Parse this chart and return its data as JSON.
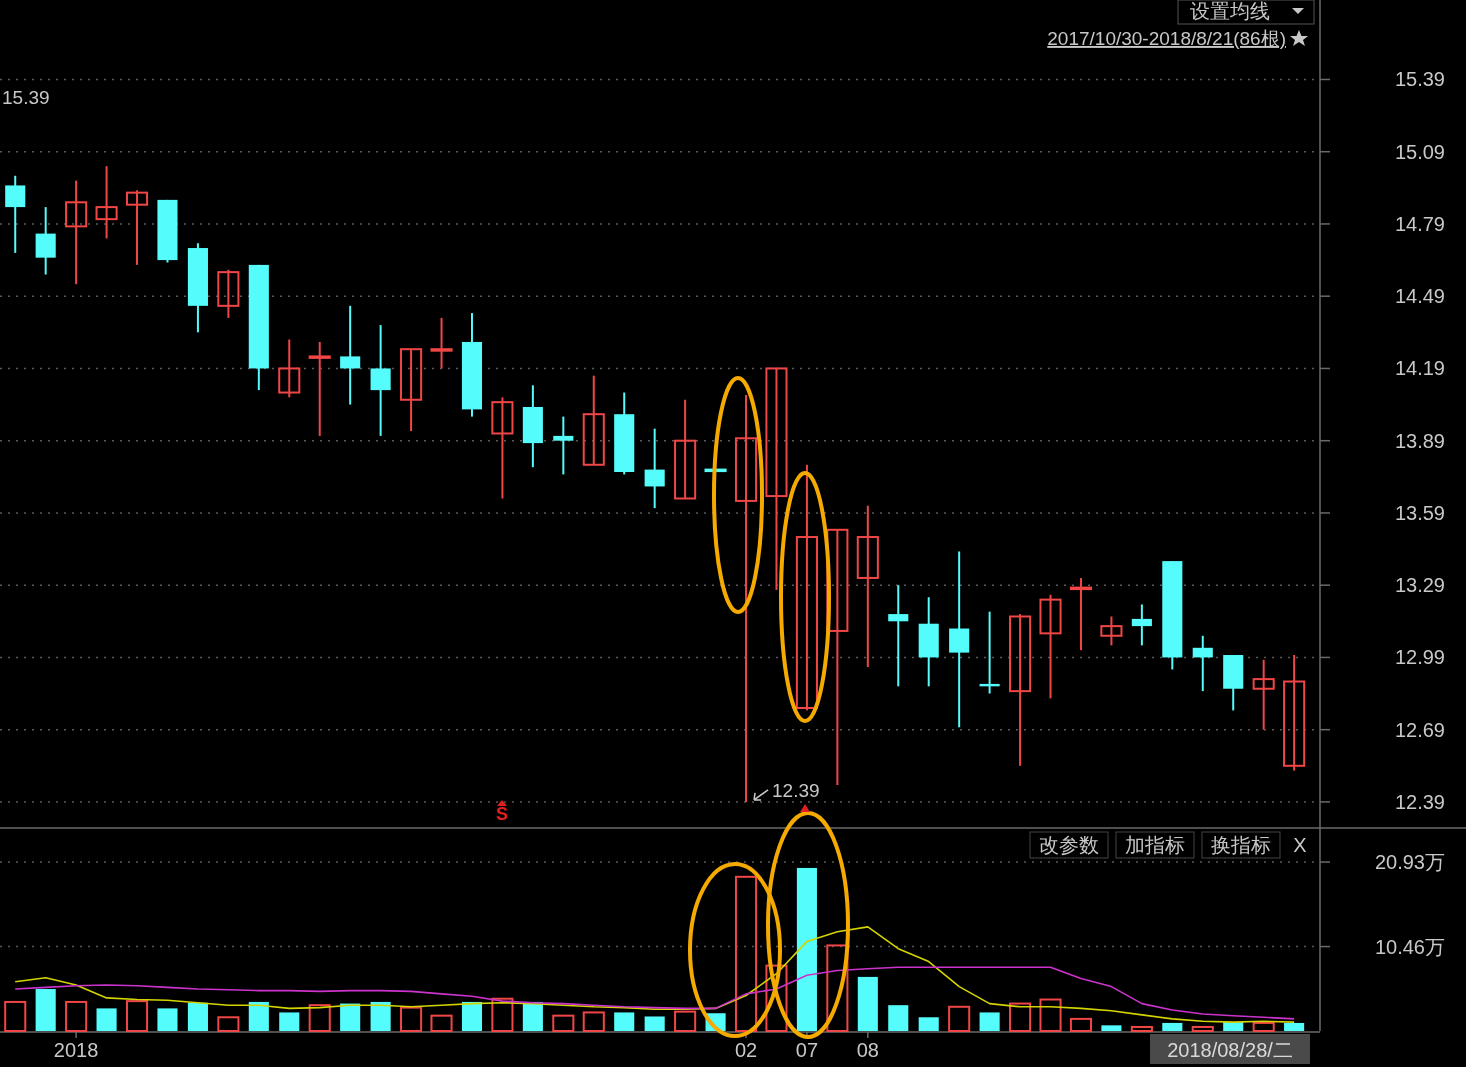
{
  "chart_data": [
    {
      "type": "candlestick",
      "categories": [
        null,
        null,
        "2018",
        null,
        null,
        null,
        null,
        null,
        null,
        null,
        null,
        null,
        null,
        null,
        null,
        null,
        null,
        null,
        null,
        null,
        null,
        null,
        null,
        null,
        "02",
        null,
        "07",
        null,
        "08",
        null,
        null,
        null,
        null,
        null,
        null,
        null,
        null,
        null,
        null,
        null,
        null,
        null,
        null
      ],
      "ohlc": [
        [
          14.95,
          14.99,
          14.67,
          14.86
        ],
        [
          14.75,
          14.86,
          14.58,
          14.65
        ],
        [
          14.78,
          14.97,
          14.54,
          14.88
        ],
        [
          14.81,
          15.03,
          14.73,
          14.86
        ],
        [
          14.87,
          14.93,
          14.62,
          14.92
        ],
        [
          14.89,
          14.89,
          14.63,
          14.64
        ],
        [
          14.69,
          14.71,
          14.34,
          14.45
        ],
        [
          14.45,
          14.6,
          14.4,
          14.59
        ],
        [
          14.62,
          14.62,
          14.1,
          14.19
        ],
        [
          14.09,
          14.31,
          14.07,
          14.19
        ],
        [
          14.24,
          14.3,
          13.91,
          14.24
        ],
        [
          14.24,
          14.45,
          14.04,
          14.19
        ],
        [
          14.19,
          14.37,
          13.91,
          14.1
        ],
        [
          14.06,
          14.27,
          13.93,
          14.27
        ],
        [
          14.27,
          14.4,
          14.19,
          14.27
        ],
        [
          14.3,
          14.42,
          13.99,
          14.02
        ],
        [
          13.92,
          14.07,
          13.65,
          14.05
        ],
        [
          14.03,
          14.12,
          13.78,
          13.88
        ],
        [
          13.91,
          13.99,
          13.75,
          13.89
        ],
        [
          13.79,
          14.16,
          13.79,
          14.0
        ],
        [
          14.0,
          14.09,
          13.75,
          13.76
        ],
        [
          13.77,
          13.94,
          13.61,
          13.7
        ],
        [
          13.65,
          14.06,
          13.65,
          13.89
        ],
        [
          13.77,
          13.77,
          13.77,
          13.77
        ],
        [
          13.64,
          14.08,
          12.39,
          13.9
        ],
        [
          13.66,
          14.19,
          13.27,
          14.19
        ],
        [
          12.78,
          13.79,
          12.77,
          13.49
        ],
        [
          13.1,
          13.52,
          12.46,
          13.52
        ],
        [
          13.32,
          13.62,
          12.95,
          13.49
        ],
        [
          13.17,
          13.29,
          12.87,
          13.14
        ],
        [
          13.13,
          13.24,
          12.87,
          12.99
        ],
        [
          13.11,
          13.43,
          12.7,
          13.01
        ],
        [
          12.88,
          13.18,
          12.84,
          12.87
        ],
        [
          12.85,
          13.17,
          12.54,
          13.16
        ],
        [
          13.09,
          13.25,
          12.82,
          13.23
        ],
        [
          13.28,
          13.32,
          13.02,
          13.28
        ],
        [
          13.08,
          13.16,
          13.04,
          13.12
        ],
        [
          13.15,
          13.21,
          13.04,
          13.12
        ],
        [
          13.39,
          13.39,
          12.94,
          12.99
        ],
        [
          13.03,
          13.08,
          12.85,
          12.99
        ],
        [
          13.0,
          13.0,
          12.77,
          12.86
        ],
        [
          12.86,
          12.98,
          12.69,
          12.9
        ],
        [
          12.54,
          13.0,
          12.52,
          12.89
        ]
      ],
      "colors": [
        "#54fcfc",
        "#54fcfc",
        "#f04646",
        "#f04646",
        "#f04646",
        "#54fcfc",
        "#54fcfc",
        "#f04646",
        "#54fcfc",
        "#f04646",
        "#f04646",
        "#54fcfc",
        "#54fcfc",
        "#f04646",
        "#f04646",
        "#54fcfc",
        "#f04646",
        "#54fcfc",
        "#54fcfc",
        "#f04646",
        "#54fcfc",
        "#54fcfc",
        "#f04646",
        "#54fcfc",
        "#f04646",
        "#f04646",
        "#f04646",
        "#f04646",
        "#f04646",
        "#54fcfc",
        "#54fcfc",
        "#54fcfc",
        "#54fcfc",
        "#f04646",
        "#f04646",
        "#f04646",
        "#f04646",
        "#54fcfc",
        "#54fcfc",
        "#54fcfc",
        "#54fcfc",
        "#f04646",
        "#f04646"
      ],
      "ylim": [
        12.29,
        15.72
      ],
      "yticks": [
        12.39,
        12.69,
        12.99,
        13.29,
        13.59,
        13.89,
        14.19,
        14.49,
        14.79,
        15.09,
        15.39
      ],
      "grid": "y",
      "tick_labels": "y",
      "annotations": [
        "设置均线",
        "2017/10/30-2018/8/21(86根)",
        "15.39",
        {
          "text": "12.39",
          "x": "02",
          "y": 12.39
        },
        "S"
      ]
    },
    {
      "type": "bar",
      "categories": [
        null,
        null,
        "2018",
        null,
        null,
        null,
        null,
        null,
        null,
        null,
        null,
        null,
        null,
        null,
        null,
        null,
        null,
        null,
        null,
        null,
        null,
        null,
        null,
        null,
        "02",
        null,
        "07",
        null,
        "08",
        null,
        null,
        null,
        null,
        null,
        null,
        null,
        null,
        null,
        null,
        null,
        null,
        null,
        null
      ],
      "series": [
        {
          "type": "bar",
          "values": [
            3.6,
            5.2,
            3.6,
            2.8,
            3.7,
            2.8,
            3.5,
            1.7,
            3.6,
            2.3,
            3.2,
            3.4,
            3.6,
            2.9,
            1.9,
            3.6,
            4.0,
            3.6,
            1.9,
            2.3,
            2.3,
            1.8,
            2.4,
            2.2,
            19.1,
            8.1,
            20.2,
            10.6,
            6.7,
            3.2,
            1.7,
            3.0,
            2.3,
            3.4,
            3.9,
            1.5,
            0.7,
            0.5,
            1.0,
            0.5,
            1.1,
            1.0,
            1.0
          ],
          "colors": [
            "#f04646",
            "#54fcfc",
            "#f04646",
            "#54fcfc",
            "#f04646",
            "#54fcfc",
            "#54fcfc",
            "#f04646",
            "#54fcfc",
            "#54fcfc",
            "#f04646",
            "#54fcfc",
            "#54fcfc",
            "#f04646",
            "#f04646",
            "#54fcfc",
            "#f04646",
            "#54fcfc",
            "#f04646",
            "#f04646",
            "#54fcfc",
            "#54fcfc",
            "#f04646",
            "#54fcfc",
            "#f04646",
            "#f04646",
            "#54fcfc",
            "#f04646",
            "#54fcfc",
            "#54fcfc",
            "#54fcfc",
            "#f04646",
            "#54fcfc",
            "#f04646",
            "#f04646",
            "#f04646",
            "#54fcfc",
            "#f04646",
            "#54fcfc",
            "#f04646",
            "#54fcfc",
            "#f04646",
            "#54fcfc"
          ]
        },
        {
          "type": "line",
          "color": "#d4d400",
          "values": [
            6.1,
            6.6,
            5.7,
            4.1,
            3.9,
            3.8,
            3.5,
            3.2,
            3.2,
            2.8,
            2.9,
            3.2,
            3.2,
            3.0,
            3.2,
            3.4,
            3.5,
            3.4,
            3.2,
            3.0,
            2.9,
            2.7,
            2.7,
            2.8,
            4.4,
            7.1,
            11.1,
            12.3,
            12.9,
            10.2,
            8.6,
            5.5,
            3.4,
            3.0,
            3.0,
            2.8,
            2.5,
            2.0,
            1.5,
            1.2,
            1.1,
            1.2,
            1.1
          ]
        },
        {
          "type": "line",
          "color": "#cc33cc",
          "values": [
            5.2,
            5.4,
            5.6,
            5.7,
            5.6,
            5.4,
            5.2,
            5.1,
            5.0,
            5.0,
            4.9,
            5.0,
            5.0,
            4.9,
            4.6,
            4.3,
            3.7,
            3.5,
            3.4,
            3.2,
            3.0,
            2.9,
            2.8,
            2.8,
            4.6,
            5.2,
            6.9,
            7.5,
            7.7,
            7.9,
            7.9,
            7.9,
            7.9,
            7.9,
            7.9,
            6.5,
            5.5,
            3.4,
            2.6,
            2.1,
            1.9,
            1.7,
            1.5
          ]
        }
      ],
      "ylim": [
        0,
        24.9
      ],
      "yticks": [
        {
          "value": 10.46,
          "label": "10.46万"
        },
        {
          "value": 20.93,
          "label": "20.93万"
        }
      ],
      "grid": "y",
      "annotations": [
        "改参数",
        "加指标",
        "换指标",
        "X",
        "2018/08/28/二"
      ]
    }
  ]
}
